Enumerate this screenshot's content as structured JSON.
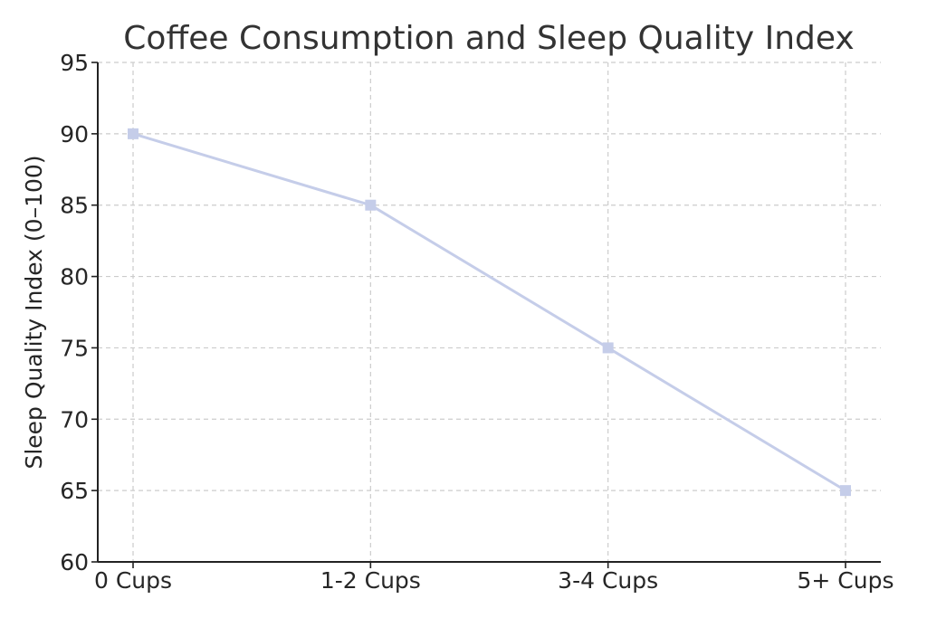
{
  "chart_data": {
    "type": "line",
    "title": "Coffee Consumption and Sleep Quality Index",
    "xlabel": "",
    "ylabel": "Sleep Quality Index (0–100)",
    "categories": [
      "0 Cups",
      "1-2 Cups",
      "3-4 Cups",
      "5+ Cups"
    ],
    "series": [
      {
        "values": [
          90,
          85,
          75,
          65
        ],
        "color": "#c5cde9",
        "marker": "square"
      }
    ],
    "ylim": [
      60,
      95
    ],
    "yticks": [
      "60",
      "65",
      "70",
      "75",
      "80",
      "85",
      "90",
      "95"
    ],
    "grid": true
  }
}
